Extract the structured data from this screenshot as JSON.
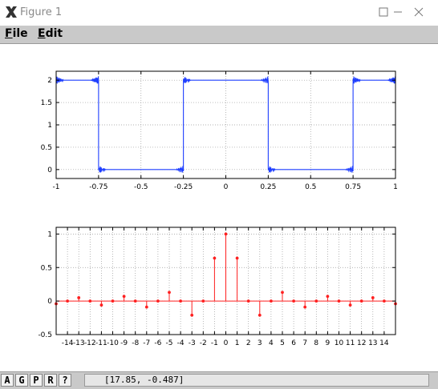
{
  "window": {
    "title": "Figure 1"
  },
  "menu": {
    "items": [
      "File",
      "Edit"
    ]
  },
  "toolbar": {
    "buttons": [
      "A",
      "G",
      "P",
      "R",
      "?"
    ]
  },
  "status": {
    "coordinates": "[17.85, -0.487]"
  },
  "colors": {
    "top_line": "#1f3fff",
    "stems": "#ff2020",
    "menubar": "#c9c9c9"
  },
  "chart_data": [
    {
      "type": "line",
      "title": "",
      "xlabel": "",
      "ylabel": "",
      "xlim": [
        -1,
        1
      ],
      "ylim": [
        -0.2,
        2.2
      ],
      "xticks": [
        "-1",
        "-0.75",
        "-0.5",
        "-0.25",
        "0",
        "0.25",
        "0.5",
        "0.75",
        "1"
      ],
      "yticks": [
        "0",
        "0.5",
        "1",
        "1.5",
        "2"
      ],
      "grid": true,
      "series": [
        {
          "x": [
            -1,
            -0.75,
            -0.75,
            -0.25,
            -0.25,
            0.25,
            0.25,
            0.75,
            0.75,
            1
          ],
          "y": [
            2,
            2,
            0,
            0,
            2,
            2,
            0,
            0,
            2,
            2
          ]
        }
      ]
    },
    {
      "type": "stem",
      "title": "",
      "xlabel": "",
      "ylabel": "",
      "xlim": [
        -15,
        15
      ],
      "ylim": [
        -0.5,
        1.1
      ],
      "xticks": [
        "-14",
        "-13",
        "-12",
        "-11",
        "-10",
        "-9",
        "-8",
        "-7",
        "-6",
        "-5",
        "-4",
        "-3",
        "-2",
        "-1",
        "0",
        "1",
        "2",
        "3",
        "4",
        "5",
        "6",
        "7",
        "8",
        "9",
        "10",
        "11",
        "12",
        "13",
        "14"
      ],
      "yticks": [
        "-0.5",
        "0",
        "0.5",
        "1"
      ],
      "grid": true,
      "x": [
        -15,
        -14,
        -13,
        -12,
        -11,
        -10,
        -9,
        -8,
        -7,
        -6,
        -5,
        -4,
        -3,
        -2,
        -1,
        0,
        1,
        2,
        3,
        4,
        5,
        6,
        7,
        8,
        9,
        10,
        11,
        12,
        13,
        14,
        15
      ],
      "series": [
        {
          "values": [
            -0.04,
            0,
            0.05,
            0,
            -0.06,
            0,
            0.07,
            0,
            -0.09,
            0,
            0.13,
            0,
            -0.21,
            0,
            0.64,
            1.0,
            0.64,
            0,
            -0.21,
            0,
            0.13,
            0,
            -0.09,
            0,
            0.07,
            0,
            -0.06,
            0,
            0.05,
            0,
            -0.04
          ]
        }
      ]
    }
  ]
}
